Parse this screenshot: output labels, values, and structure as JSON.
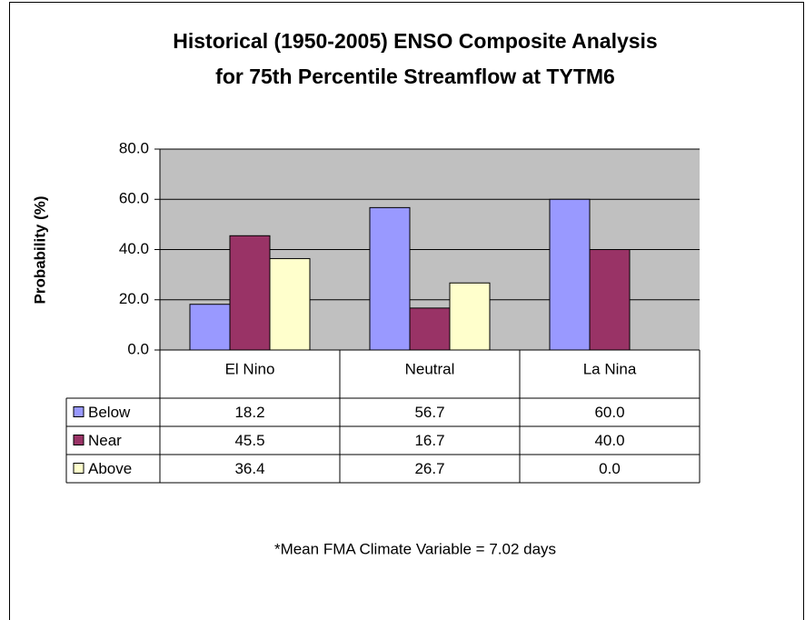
{
  "chart_data": {
    "type": "bar",
    "title": [
      "Historical (1950-2005) ENSO Composite Analysis",
      "for 75th Percentile Streamflow at TYTM6"
    ],
    "y_label": "Probability (%)",
    "categories": [
      "El Nino",
      "Neutral",
      "La Nina"
    ],
    "series": [
      {
        "name": "Below",
        "color": "#9999ff",
        "values": [
          18.2,
          56.7,
          60
        ],
        "value_labels": [
          "18.2",
          "56.7",
          "60.0"
        ]
      },
      {
        "name": "Near",
        "color": "#993366",
        "values": [
          45.5,
          16.7,
          40
        ],
        "value_labels": [
          "45.5",
          "16.7",
          "40.0"
        ]
      },
      {
        "name": "Above",
        "color": "#ffffcc",
        "values": [
          36.4,
          26.7,
          0
        ],
        "value_labels": [
          "36.4",
          "26.7",
          "0.0"
        ]
      }
    ],
    "ylim": [
      0,
      80
    ],
    "yticks": [
      {
        "value": 0,
        "label": "0.0"
      },
      {
        "value": 20,
        "label": "20.0"
      },
      {
        "value": 40,
        "label": "40.0"
      },
      {
        "value": 60,
        "label": "60.0"
      },
      {
        "value": 80,
        "label": "80.0"
      }
    ],
    "grid": true,
    "plot_background": "#c0c0c0",
    "note": "*Mean FMA Climate Variable = 7.02 days"
  }
}
